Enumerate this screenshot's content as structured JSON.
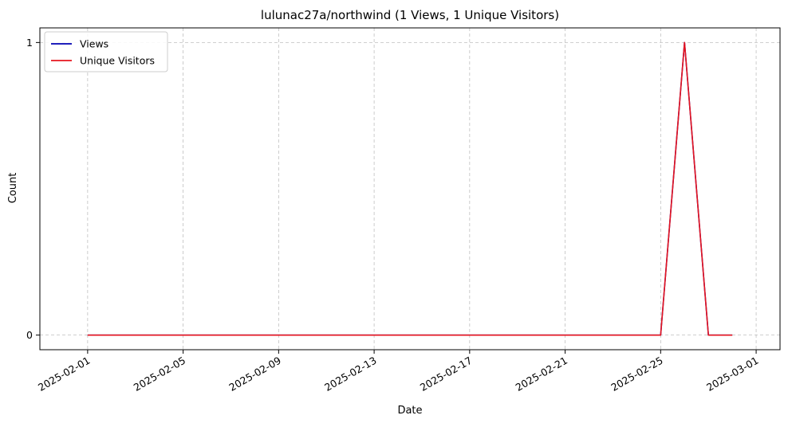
{
  "chart_data": {
    "type": "line",
    "title": "lulunac27a/northwind (1 Views, 1 Unique Visitors)",
    "xlabel": "Date",
    "ylabel": "Count",
    "x": [
      "2025-02-01",
      "2025-02-02",
      "2025-02-03",
      "2025-02-04",
      "2025-02-05",
      "2025-02-06",
      "2025-02-07",
      "2025-02-08",
      "2025-02-09",
      "2025-02-10",
      "2025-02-11",
      "2025-02-12",
      "2025-02-13",
      "2025-02-14",
      "2025-02-15",
      "2025-02-16",
      "2025-02-17",
      "2025-02-18",
      "2025-02-19",
      "2025-02-20",
      "2025-02-21",
      "2025-02-22",
      "2025-02-23",
      "2025-02-24",
      "2025-02-25",
      "2025-02-26",
      "2025-02-27",
      "2025-02-28"
    ],
    "series": [
      {
        "name": "Views",
        "color": "#0000b3",
        "values": [
          0,
          0,
          0,
          0,
          0,
          0,
          0,
          0,
          0,
          0,
          0,
          0,
          0,
          0,
          0,
          0,
          0,
          0,
          0,
          0,
          0,
          0,
          0,
          0,
          0,
          1,
          0,
          0
        ]
      },
      {
        "name": "Unique Visitors",
        "color": "#e6141e",
        "values": [
          0,
          0,
          0,
          0,
          0,
          0,
          0,
          0,
          0,
          0,
          0,
          0,
          0,
          0,
          0,
          0,
          0,
          0,
          0,
          0,
          0,
          0,
          0,
          0,
          0,
          1,
          0,
          0
        ]
      }
    ],
    "xticks": [
      "2025-02-01",
      "2025-02-05",
      "2025-02-09",
      "2025-02-13",
      "2025-02-17",
      "2025-02-21",
      "2025-02-25",
      "2025-03-01"
    ],
    "yticks": [
      0,
      1
    ],
    "xlim": [
      "2025-01-30",
      "2025-03-02"
    ],
    "ylim": [
      -0.05,
      1.05
    ],
    "grid": true,
    "legend_position": "top-left"
  }
}
